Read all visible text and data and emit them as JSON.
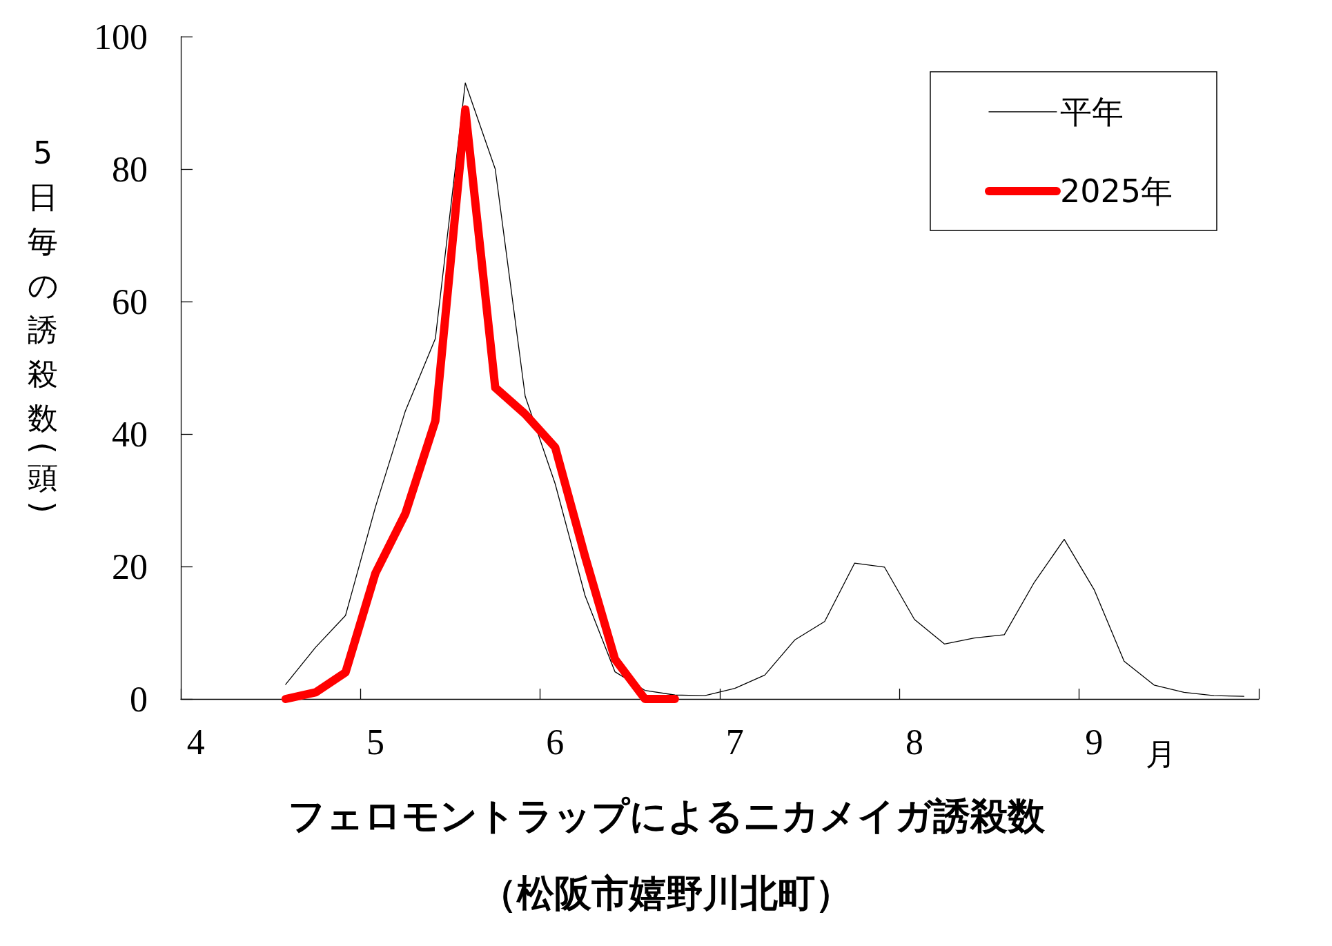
{
  "chart_data": {
    "type": "line",
    "title": "フェロモントラップによるニカメイガ誘殺数",
    "subtitle": "（松阪市嬉野川北町）",
    "xlabel": "月",
    "ylabel": "5日毎の誘殺数(頭)",
    "categories": [
      "4",
      null,
      null,
      null,
      null,
      null,
      "5",
      null,
      null,
      null,
      null,
      null,
      "6",
      null,
      null,
      null,
      null,
      null,
      "7",
      null,
      null,
      null,
      null,
      null,
      "8",
      null,
      null,
      null,
      null,
      null,
      "9",
      null,
      null,
      null,
      null,
      null
    ],
    "series": [
      {
        "name": "平年",
        "color": "#000000",
        "values": [
          null,
          null,
          null,
          2.2,
          7.8,
          12.6,
          29.0,
          43.5,
          54.4,
          93,
          80,
          45.7,
          32.5,
          15.6,
          4.1,
          1.3,
          0.6,
          0.5,
          1.6,
          3.6,
          8.9,
          11.7,
          20.5,
          19.9,
          12.0,
          8.3,
          9.2,
          9.7,
          17.6,
          24.1,
          16.5,
          5.7,
          2.1,
          1.0,
          0.5,
          0.4
        ]
      },
      {
        "name": "2025年",
        "color": "#ff0000",
        "values": [
          null,
          null,
          null,
          0,
          1,
          4,
          19,
          28,
          42,
          89,
          47,
          43,
          38,
          21.5,
          6,
          0,
          0,
          null,
          null,
          null,
          null,
          null,
          null,
          null,
          null,
          null,
          null,
          null,
          null,
          null,
          null,
          null,
          null,
          null,
          null,
          null
        ]
      }
    ],
    "ylim": [
      0,
      100
    ],
    "yticks": [
      0,
      20,
      40,
      60,
      80,
      100
    ],
    "grid": false,
    "legend": "top right",
    "marker": "none",
    "line_style": "solid"
  }
}
